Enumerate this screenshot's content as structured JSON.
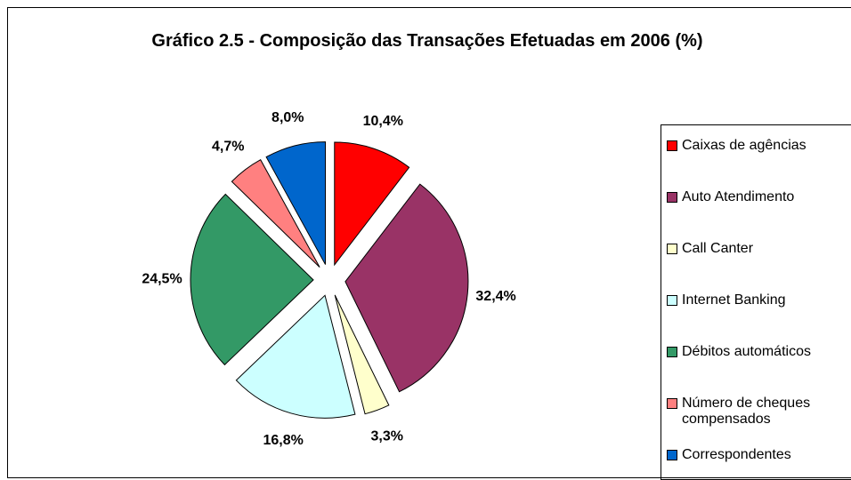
{
  "chart_data": {
    "type": "pie",
    "title": "Gráfico 2.5 - Composição das Transações Efetuadas em 2006 (%)",
    "categories": [
      "Caixas de agências",
      "Auto Atendimento",
      "Call Canter",
      "Internet Banking",
      "Débitos automáticos",
      "Número de cheques compensados",
      "Correspondentes"
    ],
    "values": [
      10.4,
      32.4,
      3.3,
      16.8,
      24.5,
      4.7,
      8.0
    ],
    "value_labels": [
      "10,4%",
      "32,4%",
      "3,3%",
      "16,8%",
      "24,5%",
      "4,7%",
      "8,0%"
    ],
    "colors": [
      "#ff0000",
      "#993366",
      "#ffffcc",
      "#ccffff",
      "#339966",
      "#ff8080",
      "#0066cc"
    ],
    "legend": "right"
  }
}
